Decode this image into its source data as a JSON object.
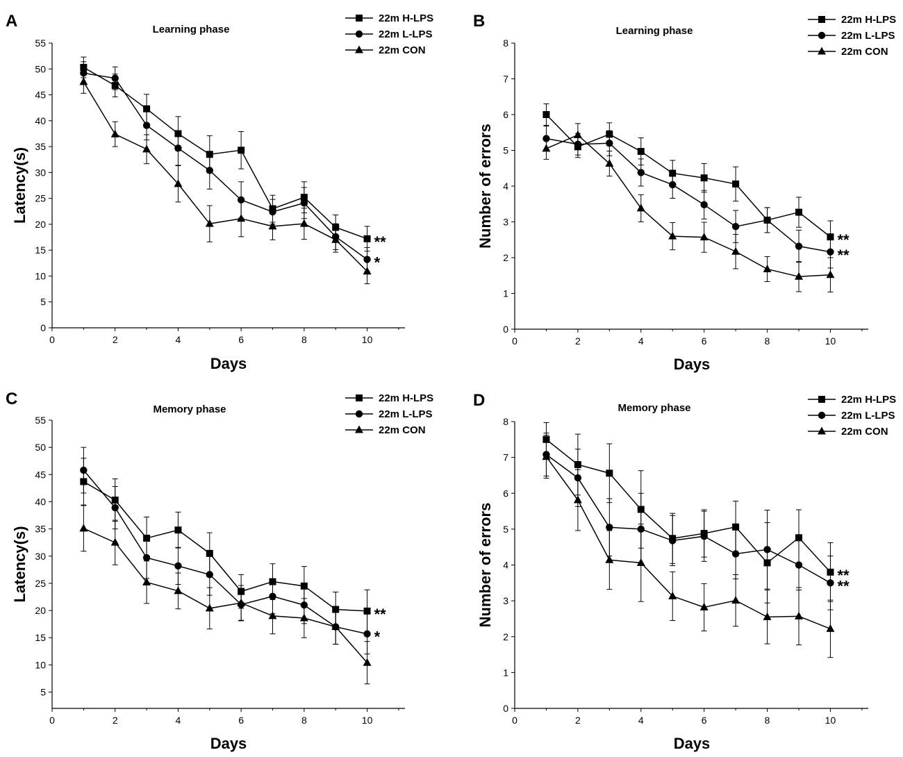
{
  "chart_data": [
    {
      "id": "A",
      "type": "line",
      "panel_letter": "A",
      "title": "Learning phase",
      "xlabel": "Days",
      "ylabel": "Latency(s)",
      "xlim": [
        0,
        11.2
      ],
      "ylim": [
        0,
        55
      ],
      "xticks": [
        0,
        2,
        4,
        6,
        8,
        10
      ],
      "yticks": [
        0,
        5,
        10,
        15,
        20,
        25,
        30,
        35,
        40,
        45,
        50,
        55
      ],
      "x": [
        1,
        2,
        3,
        4,
        5,
        6,
        7,
        8,
        9,
        10
      ],
      "legend_position": "top-right",
      "series": [
        {
          "name": "22m H-LPS",
          "marker": "square",
          "values": [
            50.3,
            46.8,
            42.3,
            37.5,
            33.5,
            34.3,
            23.0,
            25.2,
            19.4,
            17.2
          ],
          "errors": [
            2.0,
            2.2,
            2.8,
            3.3,
            3.6,
            3.6,
            2.6,
            3.0,
            2.4,
            2.4
          ],
          "annotation": "**"
        },
        {
          "name": "22m L-LPS",
          "marker": "circle",
          "values": [
            49.2,
            48.2,
            39.1,
            34.7,
            30.4,
            24.7,
            22.4,
            24.1,
            17.6,
            13.2
          ],
          "errors": [
            2.2,
            2.2,
            2.8,
            3.3,
            3.6,
            3.5,
            2.4,
            3.0,
            2.5,
            2.3
          ],
          "annotation": "*"
        },
        {
          "name": "22m CON",
          "marker": "triangle",
          "values": [
            47.5,
            37.4,
            34.5,
            27.8,
            20.1,
            21.1,
            19.6,
            20.1,
            17.0,
            10.9
          ],
          "errors": [
            2.2,
            2.4,
            2.8,
            3.5,
            3.5,
            3.5,
            2.6,
            3.0,
            2.4,
            2.4
          ],
          "annotation": ""
        }
      ]
    },
    {
      "id": "B",
      "type": "line",
      "panel_letter": "B",
      "title": "Learning phase",
      "xlabel": "Days",
      "ylabel": "Number of errors",
      "xlim": [
        0,
        11.2
      ],
      "ylim": [
        0,
        8
      ],
      "xticks": [
        0,
        2,
        4,
        6,
        8,
        10
      ],
      "yticks": [
        0,
        1,
        2,
        3,
        4,
        5,
        6,
        7,
        8
      ],
      "x": [
        1,
        2,
        3,
        4,
        5,
        6,
        7,
        8,
        9,
        10
      ],
      "legend_position": "top-right",
      "series": [
        {
          "name": "22m H-LPS",
          "marker": "square",
          "values": [
            6.0,
            5.1,
            5.45,
            4.97,
            4.36,
            4.23,
            4.06,
            3.05,
            3.27,
            2.58
          ],
          "errors": [
            0.3,
            0.3,
            0.32,
            0.38,
            0.36,
            0.4,
            0.48,
            0.35,
            0.42,
            0.45
          ],
          "annotation": "**"
        },
        {
          "name": "22m L-LPS",
          "marker": "circle",
          "values": [
            5.33,
            5.17,
            5.2,
            4.38,
            4.04,
            3.48,
            2.87,
            3.05,
            2.32,
            2.16
          ],
          "errors": [
            0.35,
            0.3,
            0.35,
            0.38,
            0.38,
            0.4,
            0.45,
            0.35,
            0.45,
            0.45
          ],
          "annotation": "**"
        },
        {
          "name": "22m CON",
          "marker": "triangle",
          "values": [
            5.05,
            5.43,
            4.63,
            3.38,
            2.6,
            2.57,
            2.17,
            1.68,
            1.47,
            1.52
          ],
          "errors": [
            0.3,
            0.32,
            0.35,
            0.38,
            0.38,
            0.42,
            0.48,
            0.35,
            0.42,
            0.48
          ],
          "annotation": ""
        }
      ]
    },
    {
      "id": "C",
      "type": "line",
      "panel_letter": "C",
      "title": "Memory phase",
      "xlabel": "Days",
      "ylabel": "Latency(s)",
      "xlim": [
        0,
        11.2
      ],
      "ylim": [
        2,
        55
      ],
      "xticks": [
        0,
        2,
        4,
        6,
        8,
        10
      ],
      "yticks": [
        5,
        10,
        15,
        20,
        25,
        30,
        35,
        40,
        45,
        50,
        55
      ],
      "x": [
        1,
        2,
        3,
        4,
        5,
        6,
        7,
        8,
        9,
        10
      ],
      "legend_position": "top-right",
      "series": [
        {
          "name": "22m H-LPS",
          "marker": "square",
          "values": [
            43.7,
            40.3,
            33.3,
            34.8,
            30.5,
            23.5,
            25.3,
            24.5,
            20.2,
            19.9
          ],
          "errors": [
            4.3,
            3.9,
            3.9,
            3.3,
            3.8,
            3.1,
            3.3,
            3.6,
            3.2,
            3.9
          ],
          "annotation": "**"
        },
        {
          "name": "22m L-LPS",
          "marker": "circle",
          "values": [
            45.8,
            38.9,
            29.7,
            28.2,
            26.6,
            21.1,
            22.6,
            21.0,
            17.0,
            15.7
          ],
          "errors": [
            4.2,
            3.9,
            3.8,
            3.4,
            3.8,
            3.0,
            3.2,
            3.4,
            3.2,
            3.7
          ],
          "annotation": "*"
        },
        {
          "name": "22m CON",
          "marker": "triangle",
          "values": [
            35.1,
            32.5,
            25.2,
            23.6,
            20.4,
            21.4,
            19.0,
            18.6,
            17.0,
            10.4
          ],
          "errors": [
            4.2,
            4.1,
            3.9,
            3.3,
            3.8,
            3.2,
            3.3,
            3.6,
            3.2,
            3.9
          ],
          "annotation": ""
        }
      ]
    },
    {
      "id": "D",
      "type": "line",
      "panel_letter": "D",
      "title": "Memory phase",
      "xlabel": "Days",
      "ylabel": "Number of errors",
      "xlim": [
        0,
        11.2
      ],
      "ylim": [
        0,
        8
      ],
      "xticks": [
        0,
        2,
        4,
        6,
        8,
        10
      ],
      "yticks": [
        0,
        1,
        2,
        3,
        4,
        5,
        6,
        7,
        8
      ],
      "x": [
        1,
        2,
        3,
        4,
        5,
        6,
        7,
        8,
        9,
        10
      ],
      "legend_position": "top-right",
      "series": [
        {
          "name": "22m H-LPS",
          "marker": "square",
          "values": [
            7.5,
            6.8,
            6.56,
            5.55,
            4.74,
            4.88,
            5.06,
            4.06,
            4.76,
            3.8
          ],
          "errors": [
            0.47,
            0.85,
            0.82,
            1.08,
            0.7,
            0.66,
            0.72,
            1.12,
            0.78,
            0.82
          ],
          "annotation": "**"
        },
        {
          "name": "22m L-LPS",
          "marker": "circle",
          "values": [
            7.08,
            6.43,
            5.05,
            5.0,
            4.68,
            4.8,
            4.31,
            4.43,
            4.0,
            3.5
          ],
          "errors": [
            0.6,
            0.8,
            0.8,
            1.0,
            0.7,
            0.7,
            0.7,
            1.1,
            0.7,
            0.75
          ],
          "annotation": "**"
        },
        {
          "name": "22m CON",
          "marker": "triangle",
          "values": [
            7.02,
            5.81,
            4.14,
            4.06,
            3.13,
            2.82,
            3.01,
            2.55,
            2.57,
            2.22
          ],
          "errors": [
            0.6,
            0.85,
            0.82,
            1.08,
            0.68,
            0.66,
            0.72,
            0.75,
            0.8,
            0.8
          ],
          "annotation": ""
        }
      ]
    }
  ]
}
